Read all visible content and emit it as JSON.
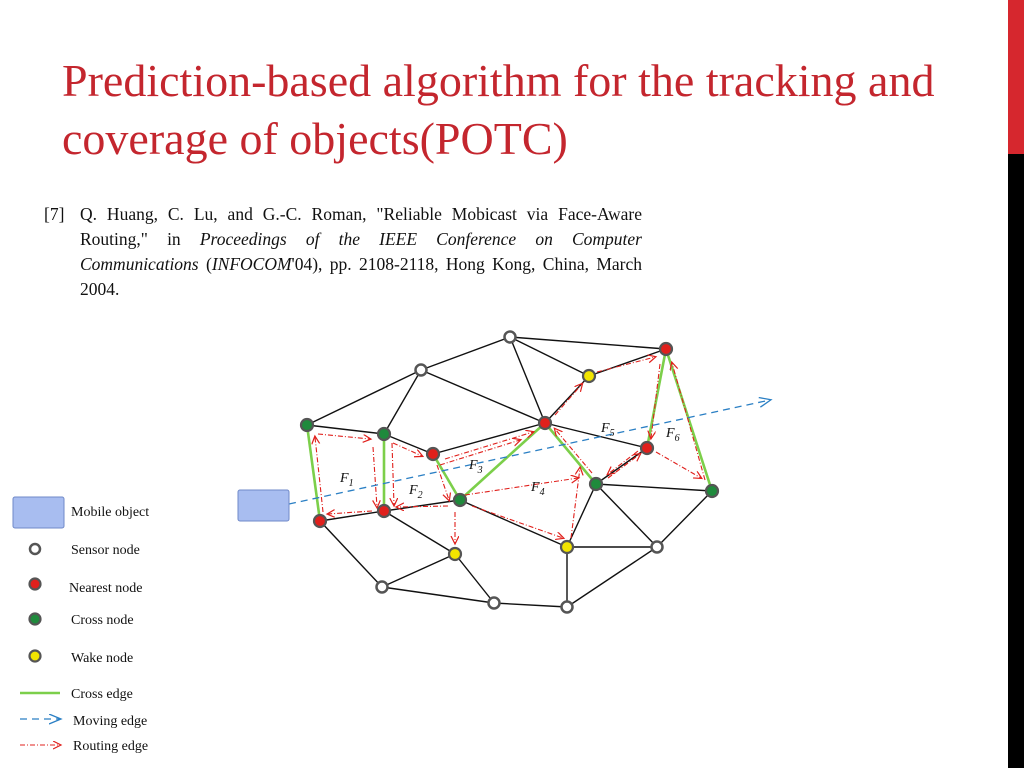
{
  "title": "Prediction-based algorithm for the tracking and coverage of objects(POTC)",
  "reference": {
    "number": "[7]",
    "part1": "Q. Huang, C. Lu, and G.-C. Roman, \"Reliable Mobicast via Face-Aware Routing,\" in ",
    "venue": "Proceedings of the IEEE Conference on Computer Communications",
    "part2": " (",
    "acronym": "INFOCOM",
    "part3": "'04), pp. 2108-2118, Hong Kong, China, March 2004."
  },
  "legend": {
    "mobile_object": "Mobile object",
    "sensor_node": "Sensor node",
    "nearest_node": "Nearest node",
    "cross_node": "Cross node",
    "wake_node": "Wake node",
    "cross_edge": "Cross edge",
    "moving_edge": "Moving edge",
    "routing_edge": "Routing edge"
  },
  "faces": [
    {
      "letter": "F",
      "sub": "1"
    },
    {
      "letter": "F",
      "sub": "2"
    },
    {
      "letter": "F",
      "sub": "3"
    },
    {
      "letter": "F",
      "sub": "4"
    },
    {
      "letter": "F",
      "sub": "5"
    },
    {
      "letter": "F",
      "sub": "6"
    }
  ],
  "colors": {
    "title": "#c4262e",
    "sensor": "#ffffff",
    "nearest": "#e0201c",
    "cross": "#1f8a3c",
    "wake": "#f2e400",
    "cross_edge": "#7ccf4a",
    "moving_edge": "#2a7fc4",
    "routing_edge": "#e0201c",
    "mobile_object": "#a8bdf0"
  }
}
